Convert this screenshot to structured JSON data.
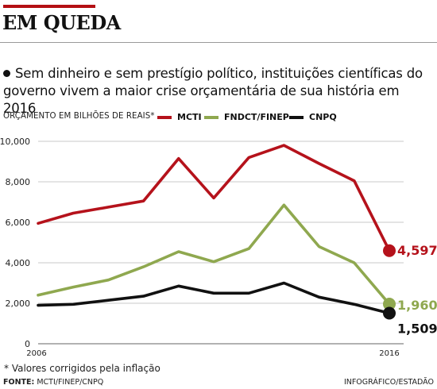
{
  "header": {
    "title": "EM QUEDA",
    "subtitle": "Sem dinheiro e sem prestígio político, instituições científicas do governo vivem a maior crise orçamentária de sua história em 2016"
  },
  "footnote": "* Valores corrigidos pela inflação",
  "source": {
    "label": "FONTE:",
    "text": "MCTI/FINEP/CNPQ"
  },
  "credit": "INFOGRÁFICO/ESTADÃO",
  "chart_data": {
    "type": "line",
    "ylabel": "ORÇAMENTO EM BILHÕES DE REAIS*",
    "ylim": [
      0,
      10000
    ],
    "yticks": [
      "10,000",
      "8,000",
      "6,000",
      "4,000",
      "2,000",
      "0"
    ],
    "ytick_values": [
      10000,
      8000,
      6000,
      4000,
      2000,
      0
    ],
    "xticks": [
      "2006",
      "2016"
    ],
    "x": [
      2006,
      2007,
      2008,
      2009,
      2010,
      2011,
      2012,
      2013,
      2014,
      2015,
      2016
    ],
    "grid": true,
    "legend_position": "top",
    "series": [
      {
        "name": "MCTI",
        "color": "#b5121b",
        "values": [
          5950,
          6450,
          6750,
          7050,
          9150,
          7200,
          9200,
          9800,
          8900,
          8050,
          4597
        ],
        "end_label": "4,597"
      },
      {
        "name": "FNDCT/FINEP",
        "color": "#8fa84f",
        "values": [
          2400,
          2800,
          3150,
          3800,
          4550,
          4050,
          4700,
          6850,
          4800,
          4000,
          1960
        ],
        "end_label": "1,960"
      },
      {
        "name": "CNPQ",
        "color": "#111111",
        "values": [
          1900,
          1950,
          2150,
          2350,
          2850,
          2500,
          2500,
          3000,
          2300,
          1950,
          1509
        ],
        "end_label": "1,509"
      }
    ]
  }
}
